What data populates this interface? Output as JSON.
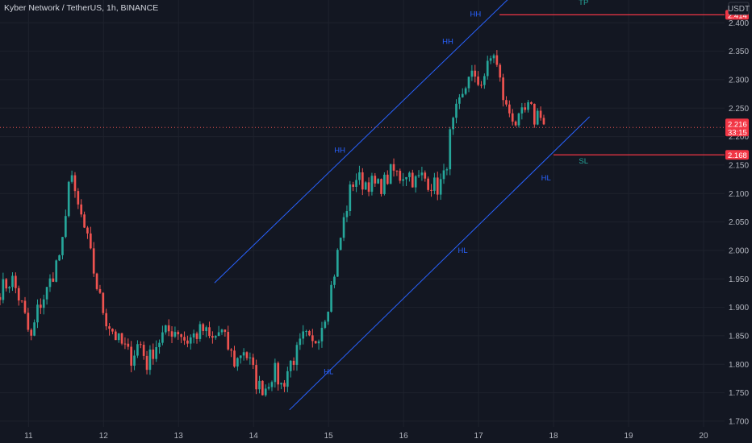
{
  "header": {
    "symbol_title": "Kyber Network / TetherUS, 1h, BINANCE",
    "currency": "USDT"
  },
  "colors": {
    "background": "#131722",
    "grid": "#1e222d",
    "up": "#26a69a",
    "down": "#ef5350",
    "channel": "#2962ff",
    "tp_line": "#f23645",
    "label_bg_red": "#f23645",
    "annotation_blue": "#2962ff",
    "annotation_green": "#26a69a",
    "axis_text": "#b2b5be"
  },
  "chart_data": {
    "type": "candlestick",
    "title": "Kyber Network / TetherUS, 1h, BINANCE",
    "ylabel": "USDT",
    "ylim": [
      1.69,
      2.44
    ],
    "xlim": [
      10.62,
      20.28
    ],
    "grid": true,
    "y_ticks": [
      1.7,
      1.75,
      1.8,
      1.85,
      1.9,
      1.95,
      2.0,
      2.05,
      2.1,
      2.15,
      2.2,
      2.25,
      2.3,
      2.35,
      2.4
    ],
    "x_ticks": [
      11,
      12,
      13,
      14,
      15,
      16,
      17,
      18,
      19,
      20
    ],
    "price_path": [
      [
        10.62,
        1.93
      ],
      [
        10.78,
        1.95
      ],
      [
        10.92,
        1.9
      ],
      [
        11.03,
        1.84
      ],
      [
        11.13,
        1.9
      ],
      [
        11.25,
        1.93
      ],
      [
        11.38,
        1.98
      ],
      [
        11.48,
        2.02
      ],
      [
        11.55,
        2.16
      ],
      [
        11.62,
        2.09
      ],
      [
        11.7,
        2.06
      ],
      [
        11.78,
        2.02
      ],
      [
        11.86,
        1.97
      ],
      [
        11.94,
        1.92
      ],
      [
        12.03,
        1.88
      ],
      [
        12.12,
        1.86
      ],
      [
        12.2,
        1.84
      ],
      [
        12.28,
        1.83
      ],
      [
        12.36,
        1.81
      ],
      [
        12.48,
        1.84
      ],
      [
        12.58,
        1.8
      ],
      [
        12.68,
        1.83
      ],
      [
        12.78,
        1.85
      ],
      [
        12.9,
        1.86
      ],
      [
        13.0,
        1.86
      ],
      [
        13.1,
        1.84
      ],
      [
        13.2,
        1.85
      ],
      [
        13.33,
        1.86
      ],
      [
        13.44,
        1.84
      ],
      [
        13.56,
        1.86
      ],
      [
        13.66,
        1.83
      ],
      [
        13.76,
        1.8
      ],
      [
        13.86,
        1.83
      ],
      [
        13.96,
        1.8
      ],
      [
        14.06,
        1.76
      ],
      [
        14.16,
        1.76
      ],
      [
        14.27,
        1.79
      ],
      [
        14.38,
        1.76
      ],
      [
        14.48,
        1.8
      ],
      [
        14.58,
        1.82
      ],
      [
        14.68,
        1.85
      ],
      [
        14.78,
        1.83
      ],
      [
        14.88,
        1.86
      ],
      [
        14.98,
        1.9
      ],
      [
        15.06,
        1.95
      ],
      [
        15.13,
        2.0
      ],
      [
        15.2,
        2.05
      ],
      [
        15.28,
        2.1
      ],
      [
        15.35,
        2.13
      ],
      [
        15.45,
        2.12
      ],
      [
        15.55,
        2.12
      ],
      [
        15.65,
        2.11
      ],
      [
        15.75,
        2.12
      ],
      [
        15.85,
        2.14
      ],
      [
        15.95,
        2.13
      ],
      [
        16.05,
        2.14
      ],
      [
        16.15,
        2.12
      ],
      [
        16.25,
        2.13
      ],
      [
        16.35,
        2.12
      ],
      [
        16.45,
        2.11
      ],
      [
        16.55,
        2.13
      ],
      [
        16.62,
        2.2
      ],
      [
        16.7,
        2.24
      ],
      [
        16.8,
        2.27
      ],
      [
        16.88,
        2.32
      ],
      [
        16.96,
        2.29
      ],
      [
        17.04,
        2.3
      ],
      [
        17.12,
        2.32
      ],
      [
        17.2,
        2.35
      ],
      [
        17.28,
        2.3
      ],
      [
        17.36,
        2.25
      ],
      [
        17.44,
        2.24
      ],
      [
        17.52,
        2.22
      ],
      [
        17.6,
        2.24
      ],
      [
        17.68,
        2.25
      ],
      [
        17.75,
        2.23
      ],
      [
        17.82,
        2.25
      ],
      [
        17.88,
        2.216
      ]
    ],
    "annotations": [
      {
        "text": "HH",
        "x": 16.96,
        "y": 2.415,
        "color": "blue"
      },
      {
        "text": "HH",
        "x": 16.59,
        "y": 2.367,
        "color": "blue"
      },
      {
        "text": "HH",
        "x": 15.15,
        "y": 2.176,
        "color": "blue"
      },
      {
        "text": "HL",
        "x": 15.0,
        "y": 1.787,
        "color": "blue"
      },
      {
        "text": "HL",
        "x": 16.79,
        "y": 2.0,
        "color": "blue"
      },
      {
        "text": "HL",
        "x": 17.9,
        "y": 2.127,
        "color": "blue"
      },
      {
        "text": "TP",
        "x": 18.4,
        "y": 2.436,
        "color": "green"
      },
      {
        "text": "SL",
        "x": 18.4,
        "y": 2.157,
        "color": "green"
      }
    ],
    "channel_lines": [
      {
        "name": "upper",
        "x": [
          13.48,
          17.47
        ],
        "y": [
          1.943,
          2.451
        ]
      },
      {
        "name": "lower",
        "x": [
          14.48,
          18.48
        ],
        "y": [
          1.72,
          2.235
        ]
      }
    ],
    "levels": [
      {
        "name": "tp",
        "value": 2.414,
        "x_start": 17.28,
        "label": "2.414"
      },
      {
        "name": "sl",
        "value": 2.168,
        "x_start": 18.0,
        "label": "2.168"
      },
      {
        "name": "current",
        "value": 2.216,
        "label": "2.216",
        "countdown": "33:15"
      }
    ]
  }
}
